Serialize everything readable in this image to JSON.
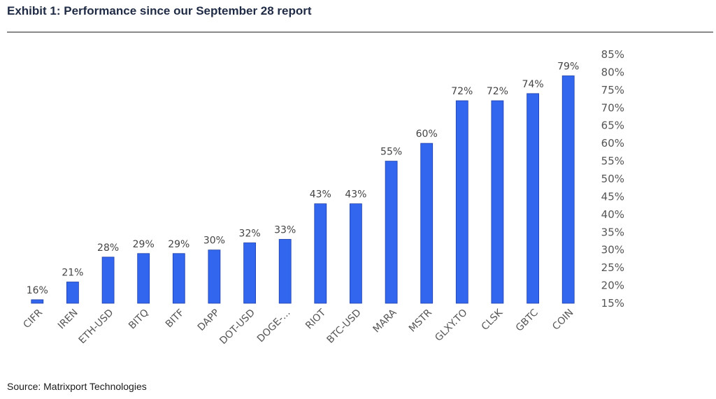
{
  "header": {
    "title": "Exhibit 1: Performance since our September 28 report"
  },
  "footer": {
    "source": "Source: Matrixport Technologies"
  },
  "chart_data": {
    "type": "bar",
    "title": "Exhibit 1: Performance since our September 28 report",
    "categories": [
      "CIFR",
      "IREN",
      "ETH-USD",
      "BITQ",
      "BITF",
      "DAPP",
      "DOT-USD",
      "DOGE-...",
      "RIOT",
      "BTC-USD",
      "MARA",
      "MSTR",
      "GLXY.TO",
      "CLSK",
      "GBTC",
      "COIN"
    ],
    "values": [
      16,
      21,
      28,
      29,
      29,
      30,
      32,
      33,
      43,
      43,
      55,
      60,
      72,
      72,
      74,
      79
    ],
    "data_labels": [
      "16%",
      "21%",
      "28%",
      "29%",
      "29%",
      "30%",
      "32%",
      "33%",
      "43%",
      "43%",
      "55%",
      "60%",
      "72%",
      "72%",
      "74%",
      "79%"
    ],
    "ylim": [
      15,
      85
    ],
    "yticks": [
      15,
      20,
      25,
      30,
      35,
      40,
      45,
      50,
      55,
      60,
      65,
      70,
      75,
      80,
      85
    ],
    "ytick_labels": [
      "15%",
      "20%",
      "25%",
      "30%",
      "35%",
      "40%",
      "45%",
      "50%",
      "55%",
      "60%",
      "65%",
      "70%",
      "75%",
      "80%",
      "85%"
    ],
    "y_axis_side": "right",
    "grid": false,
    "legend": "none",
    "bar_color": "#3366ee"
  }
}
